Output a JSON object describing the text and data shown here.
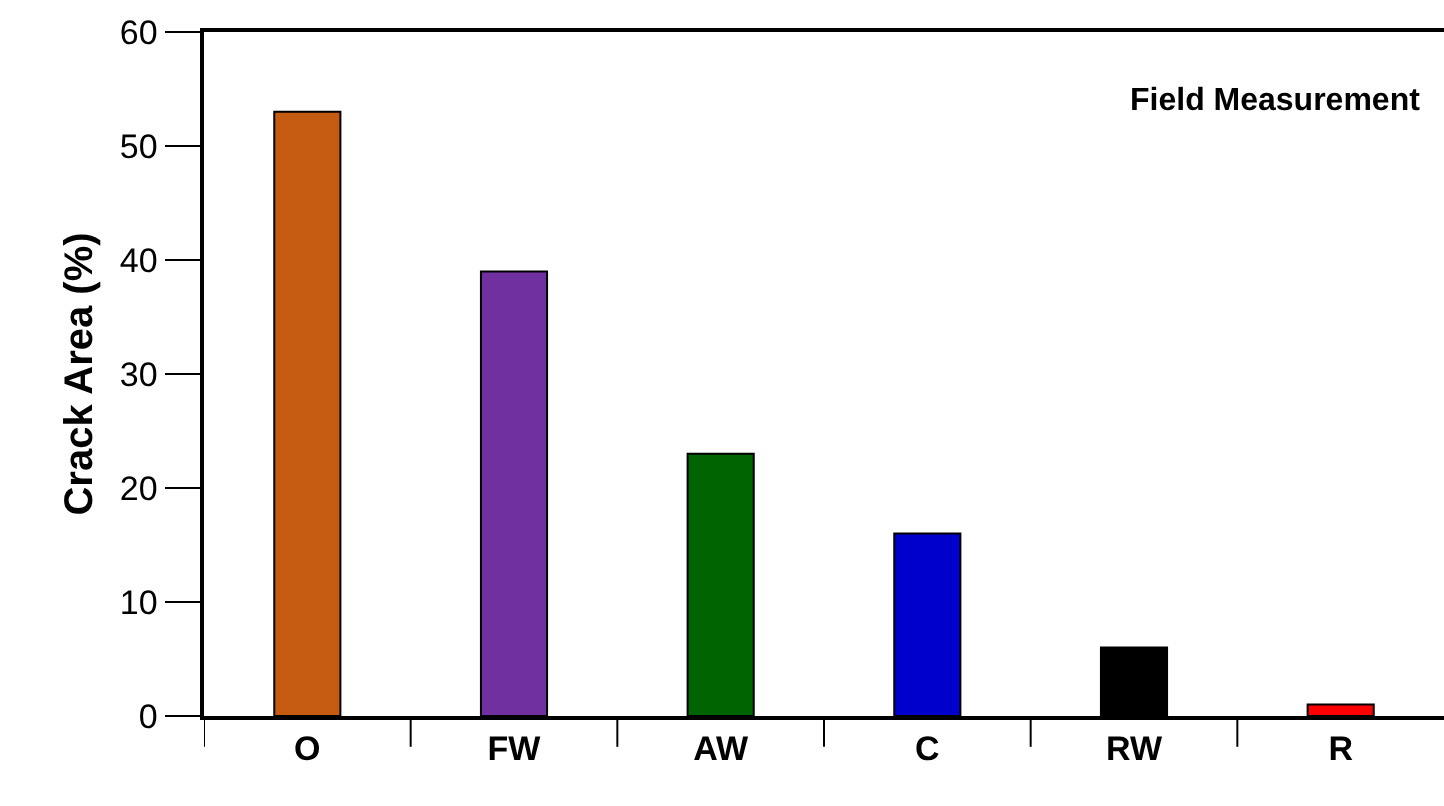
{
  "chart_data": {
    "type": "bar",
    "ylabel": "Crack Area (%)",
    "categories": [
      "O",
      "FW",
      "AW",
      "C",
      "RW",
      "R"
    ],
    "values": [
      53,
      39,
      23,
      16,
      6,
      1
    ],
    "colors": [
      "#c55a11",
      "#7030a0",
      "#006400",
      "#0000cc",
      "#000000",
      "#ff0000"
    ],
    "ylim": [
      0,
      60
    ],
    "yticks": [
      0,
      10,
      20,
      30,
      40,
      50,
      60
    ],
    "annotations": [
      "Field Measurement"
    ]
  }
}
